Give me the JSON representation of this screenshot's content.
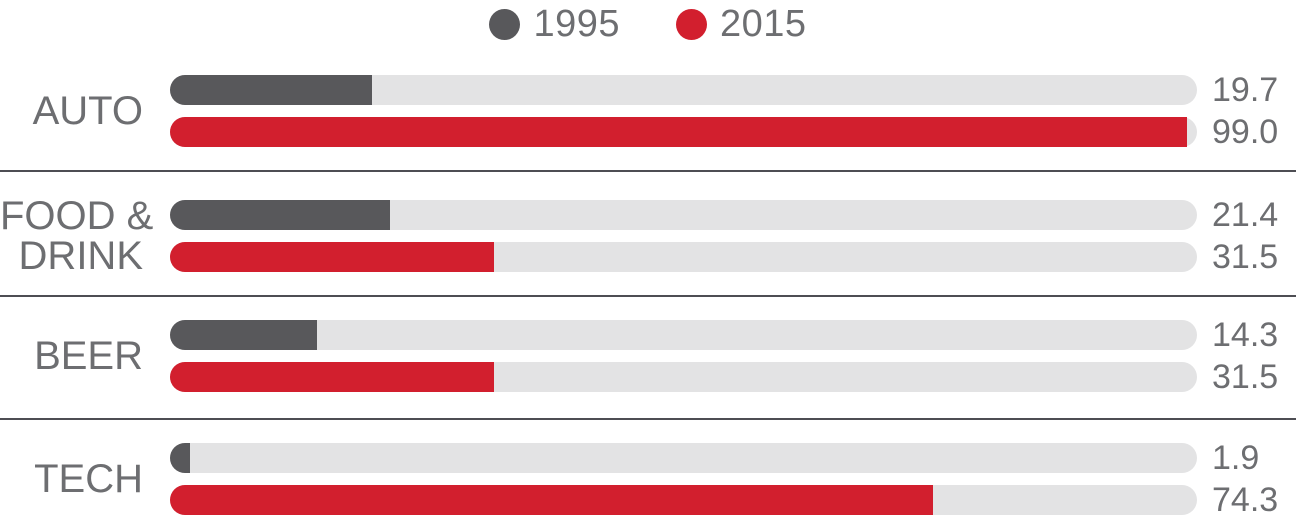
{
  "chart_data": {
    "type": "bar",
    "orientation": "horizontal",
    "title": "",
    "xlabel": "",
    "ylabel": "",
    "categories": [
      "AUTO",
      "FOOD &\nDRINK",
      "BEER",
      "TECH"
    ],
    "series": [
      {
        "name": "1995",
        "color": "#58585B",
        "values": [
          19.7,
          21.4,
          14.3,
          1.9
        ],
        "value_labels": [
          "19.7",
          "21.4",
          "14.3",
          "1.9"
        ]
      },
      {
        "name": "2015",
        "color": "#D21F2E",
        "values": [
          99.0,
          31.5,
          31.5,
          74.3
        ],
        "value_labels": [
          "99.0",
          "31.5",
          "31.5",
          "74.3"
        ]
      }
    ],
    "xlim": [
      0,
      100
    ],
    "grid": false,
    "legend": {
      "position": "top-center",
      "entries": [
        "1995",
        "2015"
      ]
    },
    "track_color": "#E3E3E4",
    "label_color": "#6D6E71",
    "divider_color": "#4E4E53"
  }
}
